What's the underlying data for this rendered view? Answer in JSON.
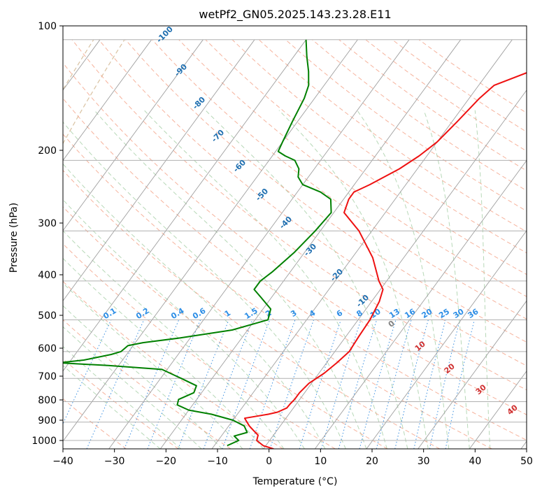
{
  "chart_data": {
    "type": "line",
    "title": "wetPf2_GN05.2025.143.23.28.E11",
    "xlabel": "Temperature (°C)",
    "ylabel": "Pressure (hPa)",
    "xlim": [
      -40,
      50
    ],
    "ylim": [
      1050,
      100
    ],
    "y_scale": "log",
    "skew": "skew-T log-P",
    "x_ticks": [
      "−40",
      "−30",
      "−20",
      "−10",
      "0",
      "10",
      "20",
      "30",
      "40",
      "50"
    ],
    "y_ticks": [
      "100",
      "200",
      "300",
      "400",
      "500",
      "600",
      "700",
      "800",
      "900",
      "1000"
    ],
    "grid": true,
    "series": [
      {
        "role": "temperature",
        "color": "#ee1111",
        "points": [
          [
            1050,
            2.0
          ],
          [
            1030,
            -0.5
          ],
          [
            1000,
            -2.5
          ],
          [
            970,
            -3.0
          ],
          [
            945,
            -4.5
          ],
          [
            920,
            -6.0
          ],
          [
            900,
            -7.0
          ],
          [
            880,
            -8.0
          ],
          [
            860,
            -4.0
          ],
          [
            850,
            -2.5
          ],
          [
            830,
            -1.3
          ],
          [
            810,
            -1.2
          ],
          [
            790,
            -1.0
          ],
          [
            760,
            -1.0
          ],
          [
            720,
            -0.5
          ],
          [
            680,
            1.0
          ],
          [
            640,
            2.0
          ],
          [
            600,
            2.8
          ],
          [
            550,
            2.5
          ],
          [
            500,
            2.3
          ],
          [
            450,
            1.5
          ],
          [
            420,
            0.5
          ],
          [
            400,
            -1.5
          ],
          [
            350,
            -6.0
          ],
          [
            300,
            -12.5
          ],
          [
            270,
            -18.0
          ],
          [
            250,
            -19.0
          ],
          [
            240,
            -19.0
          ],
          [
            230,
            -17.0
          ],
          [
            210,
            -13.5
          ],
          [
            195,
            -11.5
          ],
          [
            180,
            -10.0
          ],
          [
            160,
            -9.0
          ],
          [
            140,
            -8.0
          ],
          [
            130,
            -7.0
          ],
          [
            120,
            -2.0
          ],
          [
            110,
            1.0
          ],
          [
            100,
            3.5
          ]
        ]
      },
      {
        "role": "dewpoint",
        "color": "#008000",
        "points": [
          [
            1030,
            -7.5
          ],
          [
            1000,
            -6.0
          ],
          [
            975,
            -7.5
          ],
          [
            955,
            -5.5
          ],
          [
            920,
            -7.0
          ],
          [
            890,
            -10.0
          ],
          [
            860,
            -15.0
          ],
          [
            840,
            -20.0
          ],
          [
            815,
            -23.0
          ],
          [
            790,
            -23.5
          ],
          [
            760,
            -21.5
          ],
          [
            730,
            -22.0
          ],
          [
            700,
            -26.0
          ],
          [
            665,
            -31.0
          ],
          [
            650,
            -42.0
          ],
          [
            640,
            -52.0
          ],
          [
            630,
            -47.5
          ],
          [
            610,
            -43.0
          ],
          [
            600,
            -41.5
          ],
          [
            580,
            -41.0
          ],
          [
            570,
            -38.5
          ],
          [
            555,
            -32.0
          ],
          [
            530,
            -23.0
          ],
          [
            500,
            -17.5
          ],
          [
            470,
            -18.5
          ],
          [
            440,
            -22.0
          ],
          [
            420,
            -24.5
          ],
          [
            400,
            -24.5
          ],
          [
            380,
            -23.5
          ],
          [
            340,
            -22.0
          ],
          [
            300,
            -21.0
          ],
          [
            270,
            -20.5
          ],
          [
            250,
            -22.5
          ],
          [
            240,
            -25.5
          ],
          [
            230,
            -30.0
          ],
          [
            220,
            -32.0
          ],
          [
            210,
            -33.0
          ],
          [
            200,
            -35.0
          ],
          [
            195,
            -37.5
          ],
          [
            190,
            -39.5
          ],
          [
            180,
            -40.0
          ],
          [
            160,
            -41.0
          ],
          [
            140,
            -42.0
          ],
          [
            130,
            -43.0
          ],
          [
            120,
            -45.0
          ],
          [
            110,
            -47.5
          ],
          [
            100,
            -50.0
          ]
        ]
      }
    ],
    "dry_adiabat_labels": [
      "-100",
      "-90",
      "-80",
      "-70",
      "-60",
      "-50",
      "-40",
      "-30",
      "-20",
      "-10"
    ],
    "moist_adiabat_labels": [
      "0",
      "10",
      "20",
      "30",
      "40"
    ],
    "mixing_ratio_labels": [
      "0.1",
      "0.2",
      "0.4",
      "0.6",
      "1",
      "1.5",
      "2",
      "3",
      "4",
      "6",
      "8",
      "10",
      "13",
      "16",
      "20",
      "25",
      "30",
      "36"
    ]
  }
}
